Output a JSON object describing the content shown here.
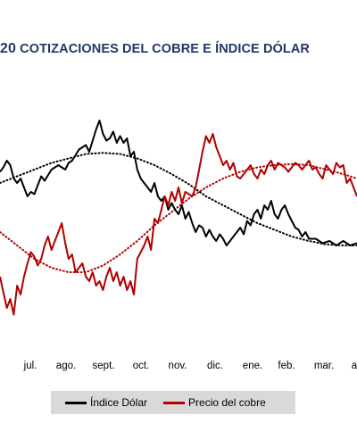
{
  "title": {
    "number": "20",
    "text": " COTIZACIONES DEL COBRE E ÍNDICE DÓLAR"
  },
  "chart_data": {
    "type": "line",
    "title": "COTIZACIONES DEL COBRE E ÍNDICE DÓLAR",
    "x_labels": [
      "jul.",
      "ago.",
      "sept.",
      "oct.",
      "nov.",
      "dic.",
      "ene.",
      "feb.",
      "mar.",
      "a"
    ],
    "x_range": [
      0,
      10.4
    ],
    "y_range": [
      0,
      100
    ],
    "grid": false,
    "legend_position": "bottom",
    "series": [
      {
        "name": "Índice Dólar",
        "color": "#000000",
        "style": "solid",
        "x": [
          0,
          0.1,
          0.2,
          0.3,
          0.4,
          0.5,
          0.6,
          0.7,
          0.8,
          0.9,
          1.0,
          1.1,
          1.2,
          1.3,
          1.5,
          1.7,
          1.9,
          2.0,
          2.1,
          2.3,
          2.5,
          2.6,
          2.8,
          2.9,
          3.0,
          3.1,
          3.2,
          3.3,
          3.4,
          3.5,
          3.6,
          3.7,
          3.8,
          3.9,
          4.0,
          4.1,
          4.2,
          4.3,
          4.4,
          4.5,
          4.6,
          4.7,
          4.8,
          4.9,
          5.0,
          5.1,
          5.2,
          5.3,
          5.4,
          5.5,
          5.6,
          5.7,
          5.8,
          5.9,
          6.0,
          6.1,
          6.2,
          6.3,
          6.4,
          6.5,
          6.6,
          6.7,
          6.8,
          6.9,
          7.0,
          7.1,
          7.2,
          7.3,
          7.4,
          7.5,
          7.6,
          7.7,
          7.8,
          7.9,
          8.0,
          8.1,
          8.2,
          8.3,
          8.4,
          8.5,
          8.6,
          8.7,
          8.8,
          8.9,
          9.0,
          9.2,
          9.4,
          9.6,
          9.8,
          10.0,
          10.2,
          10.4
        ],
        "y": [
          69,
          71,
          74,
          72,
          66,
          64,
          66,
          62,
          58,
          60,
          59,
          63,
          67,
          65,
          70,
          72,
          70,
          73,
          74,
          79,
          81,
          78,
          88,
          92,
          86,
          83,
          84,
          87,
          82,
          85,
          82,
          84,
          76,
          78,
          70,
          66,
          64,
          62,
          60,
          64,
          58,
          56,
          58,
          52,
          55,
          52,
          50,
          54,
          48,
          51,
          46,
          42,
          45,
          44,
          40,
          43,
          40,
          38,
          41,
          39,
          36,
          38,
          40,
          42,
          44,
          41,
          47,
          45,
          50,
          52,
          48,
          54,
          52,
          56,
          50,
          48,
          52,
          54,
          50,
          47,
          44,
          43,
          40,
          42,
          39,
          39,
          37,
          38,
          36,
          38,
          36,
          37
        ]
      },
      {
        "name": "Precio del cobre",
        "color": "#b00000",
        "style": "solid",
        "x": [
          0,
          0.1,
          0.2,
          0.3,
          0.4,
          0.5,
          0.6,
          0.7,
          0.8,
          0.9,
          1.0,
          1.1,
          1.2,
          1.3,
          1.4,
          1.5,
          1.6,
          1.7,
          1.8,
          1.9,
          2.0,
          2.1,
          2.2,
          2.3,
          2.4,
          2.5,
          2.6,
          2.7,
          2.8,
          2.9,
          3.0,
          3.1,
          3.2,
          3.3,
          3.4,
          3.5,
          3.6,
          3.7,
          3.8,
          3.9,
          4.0,
          4.1,
          4.2,
          4.3,
          4.4,
          4.5,
          4.6,
          4.7,
          4.8,
          4.9,
          5.0,
          5.1,
          5.2,
          5.3,
          5.4,
          5.5,
          5.6,
          5.7,
          5.8,
          5.9,
          6.0,
          6.1,
          6.2,
          6.3,
          6.4,
          6.5,
          6.6,
          6.7,
          6.8,
          6.9,
          7.0,
          7.1,
          7.2,
          7.3,
          7.4,
          7.5,
          7.6,
          7.7,
          7.8,
          7.9,
          8.0,
          8.1,
          8.2,
          8.3,
          8.4,
          8.5,
          8.6,
          8.7,
          8.8,
          8.9,
          9.0,
          9.1,
          9.2,
          9.3,
          9.4,
          9.5,
          9.6,
          9.7,
          9.8,
          9.9,
          10.0,
          10.1,
          10.2,
          10.4
        ],
        "y": [
          22,
          15,
          8,
          12,
          5,
          18,
          14,
          22,
          28,
          33,
          31,
          27,
          30,
          36,
          40,
          34,
          38,
          42,
          46,
          37,
          30,
          32,
          24,
          26,
          28,
          22,
          20,
          24,
          18,
          20,
          16,
          22,
          26,
          20,
          24,
          18,
          22,
          16,
          20,
          14,
          30,
          33,
          36,
          40,
          34,
          48,
          46,
          52,
          58,
          54,
          60,
          56,
          62,
          55,
          60,
          59,
          58,
          62,
          70,
          78,
          85,
          82,
          86,
          80,
          76,
          72,
          74,
          70,
          73,
          67,
          66,
          68,
          70,
          72,
          68,
          66,
          70,
          68,
          72,
          74,
          70,
          73,
          72,
          71,
          69,
          71,
          73,
          72,
          70,
          72,
          74,
          70,
          71,
          68,
          66,
          72,
          70,
          68,
          73,
          71,
          72,
          64,
          66,
          58
        ]
      },
      {
        "name": "",
        "color": "#000000",
        "style": "dotted",
        "x": [
          0,
          0.5,
          1.0,
          1.5,
          2.0,
          2.5,
          3.0,
          3.5,
          4.0,
          4.5,
          5.0,
          5.5,
          6.0,
          6.5,
          7.0,
          7.5,
          8.0,
          8.5,
          9.0,
          9.5,
          10.0,
          10.4
        ],
        "y": [
          64,
          67,
          70,
          73,
          75,
          77,
          77.5,
          77,
          75,
          72,
          68,
          63.5,
          58,
          54,
          50,
          46,
          43,
          40,
          38,
          36.5,
          36,
          36
        ]
      },
      {
        "name": "",
        "color": "#b00000",
        "style": "dotted",
        "x": [
          0,
          0.5,
          1.0,
          1.5,
          2.0,
          2.5,
          3.0,
          3.5,
          4.0,
          4.5,
          5.0,
          5.5,
          6.0,
          6.5,
          7.0,
          7.5,
          8.0,
          8.5,
          9.0,
          9.5,
          10.0,
          10.4
        ],
        "y": [
          42,
          36,
          30,
          26,
          24,
          24,
          27,
          32,
          38,
          45,
          51,
          57,
          62,
          66,
          69,
          71,
          72,
          72.5,
          72,
          70,
          68,
          66
        ]
      }
    ]
  },
  "legend": {
    "items": [
      {
        "label": "Índice Dólar",
        "color": "#000000"
      },
      {
        "label": "Precio del cobre",
        "color": "#b00000"
      }
    ]
  }
}
